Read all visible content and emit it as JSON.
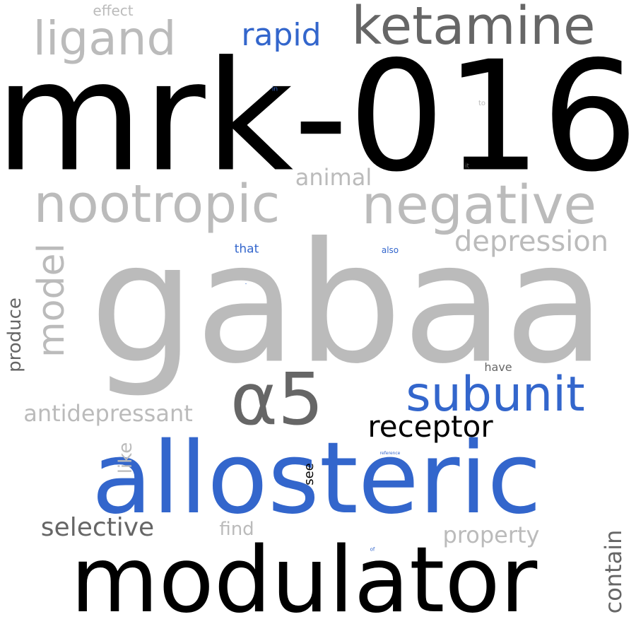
{
  "palette": {
    "black": "#000000",
    "dark_gray": "#666666",
    "light_gray": "#bbbbbb",
    "blue": "#3366cc"
  },
  "words": [
    {
      "text": "mrk-016",
      "color": "black",
      "orientation": "horizontal"
    },
    {
      "text": "gabaa",
      "color": "light_gray",
      "orientation": "horizontal"
    },
    {
      "text": "allosteric",
      "color": "blue",
      "orientation": "horizontal"
    },
    {
      "text": "modulator",
      "color": "black",
      "orientation": "horizontal"
    },
    {
      "text": "negative",
      "color": "light_gray",
      "orientation": "horizontal"
    },
    {
      "text": "nootropic",
      "color": "light_gray",
      "orientation": "horizontal"
    },
    {
      "text": "ketamine",
      "color": "dark_gray",
      "orientation": "horizontal"
    },
    {
      "text": "ligand",
      "color": "light_gray",
      "orientation": "horizontal"
    },
    {
      "text": "α5",
      "color": "dark_gray",
      "orientation": "horizontal"
    },
    {
      "text": "subunit",
      "color": "blue",
      "orientation": "horizontal"
    },
    {
      "text": "receptor",
      "color": "black",
      "orientation": "horizontal"
    },
    {
      "text": "rapid",
      "color": "blue",
      "orientation": "horizontal"
    },
    {
      "text": "model",
      "color": "light_gray",
      "orientation": "vertical"
    },
    {
      "text": "depression",
      "color": "light_gray",
      "orientation": "horizontal"
    },
    {
      "text": "antidepressant",
      "color": "light_gray",
      "orientation": "horizontal"
    },
    {
      "text": "selective",
      "color": "dark_gray",
      "orientation": "horizontal"
    },
    {
      "text": "animal",
      "color": "light_gray",
      "orientation": "horizontal"
    },
    {
      "text": "property",
      "color": "light_gray",
      "orientation": "horizontal"
    },
    {
      "text": "contain",
      "color": "dark_gray",
      "orientation": "vertical"
    },
    {
      "text": "produce",
      "color": "dark_gray",
      "orientation": "vertical"
    },
    {
      "text": "like",
      "color": "light_gray",
      "orientation": "vertical"
    },
    {
      "text": "find",
      "color": "light_gray",
      "orientation": "horizontal"
    },
    {
      "text": "see",
      "color": "black",
      "orientation": "vertical"
    },
    {
      "text": "effect",
      "color": "light_gray",
      "orientation": "horizontal"
    },
    {
      "text": "have",
      "color": "dark_gray",
      "orientation": "horizontal"
    },
    {
      "text": "that",
      "color": "blue",
      "orientation": "horizontal"
    },
    {
      "text": "also",
      "color": "blue",
      "orientation": "horizontal"
    },
    {
      "text": "in",
      "color": "blue",
      "orientation": "horizontal"
    },
    {
      "text": "to",
      "color": "light_gray",
      "orientation": "horizontal"
    },
    {
      "text": "it",
      "color": "dark_gray",
      "orientation": "horizontal"
    },
    {
      "text": "reference",
      "color": "blue",
      "orientation": "horizontal"
    },
    {
      "text": "of",
      "color": "blue",
      "orientation": "horizontal"
    },
    {
      "text": "-",
      "color": "blue",
      "orientation": "horizontal"
    }
  ]
}
